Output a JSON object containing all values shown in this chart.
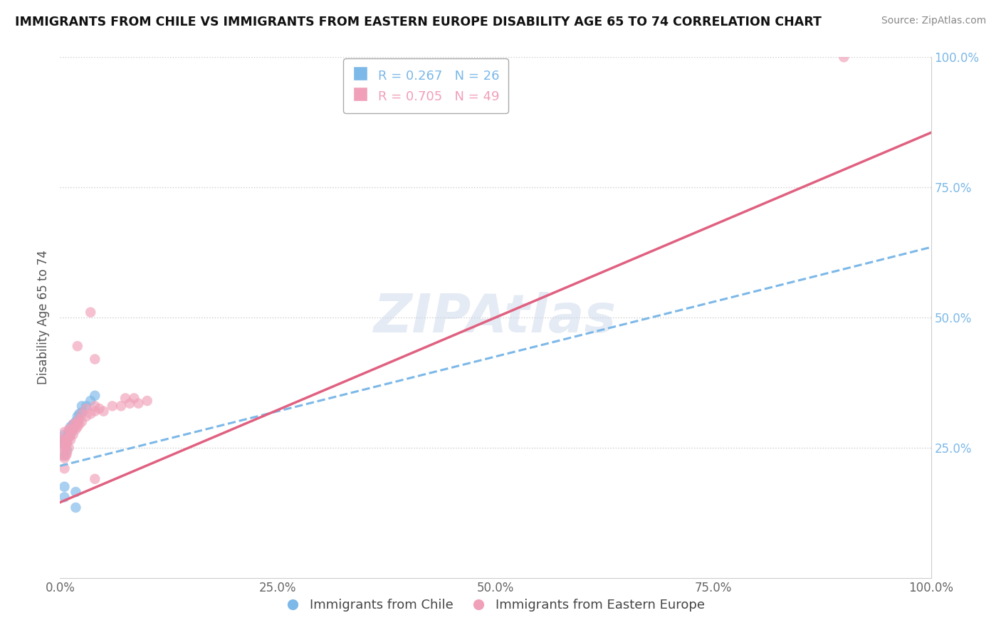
{
  "title": "IMMIGRANTS FROM CHILE VS IMMIGRANTS FROM EASTERN EUROPE DISABILITY AGE 65 TO 74 CORRELATION CHART",
  "source": "Source: ZipAtlas.com",
  "ylabel": "Disability Age 65 to 74",
  "xmin": 0.0,
  "xmax": 1.0,
  "ymin": 0.0,
  "ymax": 1.0,
  "xtick_labels": [
    "0.0%",
    "25.0%",
    "50.0%",
    "75.0%",
    "100.0%"
  ],
  "xtick_vals": [
    0.0,
    0.25,
    0.5,
    0.75,
    1.0
  ],
  "ytick_labels_right": [
    "100.0%",
    "75.0%",
    "50.0%",
    "25.0%"
  ],
  "ytick_vals_right": [
    1.0,
    0.75,
    0.5,
    0.25
  ],
  "legend_label1": "Immigrants from Chile",
  "legend_label2": "Immigrants from Eastern Europe",
  "r1": 0.267,
  "n1": 26,
  "r2": 0.705,
  "n2": 49,
  "color_chile": "#7cb8e8",
  "color_eastern": "#f0a0b8",
  "watermark": "ZIPAtlas",
  "chile_trend_x0": 0.0,
  "chile_trend_y0": 0.215,
  "chile_trend_x1": 1.0,
  "chile_trend_y1": 0.635,
  "eastern_trend_x0": 0.0,
  "eastern_trend_y0": 0.145,
  "eastern_trend_x1": 1.0,
  "eastern_trend_y1": 0.855,
  "chile_scatter": [
    [
      0.005,
      0.235
    ],
    [
      0.005,
      0.255
    ],
    [
      0.005,
      0.265
    ],
    [
      0.005,
      0.275
    ],
    [
      0.008,
      0.245
    ],
    [
      0.008,
      0.26
    ],
    [
      0.008,
      0.27
    ],
    [
      0.01,
      0.27
    ],
    [
      0.01,
      0.28
    ],
    [
      0.012,
      0.275
    ],
    [
      0.012,
      0.29
    ],
    [
      0.015,
      0.285
    ],
    [
      0.015,
      0.295
    ],
    [
      0.018,
      0.3
    ],
    [
      0.02,
      0.3
    ],
    [
      0.02,
      0.31
    ],
    [
      0.022,
      0.315
    ],
    [
      0.025,
      0.318
    ],
    [
      0.025,
      0.33
    ],
    [
      0.03,
      0.33
    ],
    [
      0.035,
      0.34
    ],
    [
      0.04,
      0.35
    ],
    [
      0.005,
      0.175
    ],
    [
      0.005,
      0.155
    ],
    [
      0.018,
      0.165
    ],
    [
      0.018,
      0.135
    ]
  ],
  "eastern_scatter": [
    [
      0.003,
      0.235
    ],
    [
      0.003,
      0.25
    ],
    [
      0.003,
      0.265
    ],
    [
      0.005,
      0.21
    ],
    [
      0.005,
      0.23
    ],
    [
      0.005,
      0.25
    ],
    [
      0.005,
      0.265
    ],
    [
      0.005,
      0.28
    ],
    [
      0.007,
      0.235
    ],
    [
      0.007,
      0.255
    ],
    [
      0.007,
      0.265
    ],
    [
      0.008,
      0.24
    ],
    [
      0.008,
      0.26
    ],
    [
      0.01,
      0.25
    ],
    [
      0.01,
      0.27
    ],
    [
      0.01,
      0.285
    ],
    [
      0.012,
      0.265
    ],
    [
      0.012,
      0.275
    ],
    [
      0.012,
      0.285
    ],
    [
      0.015,
      0.275
    ],
    [
      0.015,
      0.285
    ],
    [
      0.015,
      0.295
    ],
    [
      0.018,
      0.285
    ],
    [
      0.018,
      0.295
    ],
    [
      0.02,
      0.29
    ],
    [
      0.02,
      0.3
    ],
    [
      0.022,
      0.295
    ],
    [
      0.022,
      0.305
    ],
    [
      0.025,
      0.3
    ],
    [
      0.025,
      0.315
    ],
    [
      0.03,
      0.31
    ],
    [
      0.03,
      0.325
    ],
    [
      0.035,
      0.315
    ],
    [
      0.04,
      0.32
    ],
    [
      0.04,
      0.33
    ],
    [
      0.045,
      0.325
    ],
    [
      0.05,
      0.32
    ],
    [
      0.06,
      0.33
    ],
    [
      0.07,
      0.33
    ],
    [
      0.075,
      0.345
    ],
    [
      0.08,
      0.335
    ],
    [
      0.085,
      0.345
    ],
    [
      0.09,
      0.335
    ],
    [
      0.1,
      0.34
    ],
    [
      0.02,
      0.445
    ],
    [
      0.035,
      0.51
    ],
    [
      0.04,
      0.42
    ],
    [
      0.9,
      1.0
    ],
    [
      0.04,
      0.19
    ]
  ]
}
